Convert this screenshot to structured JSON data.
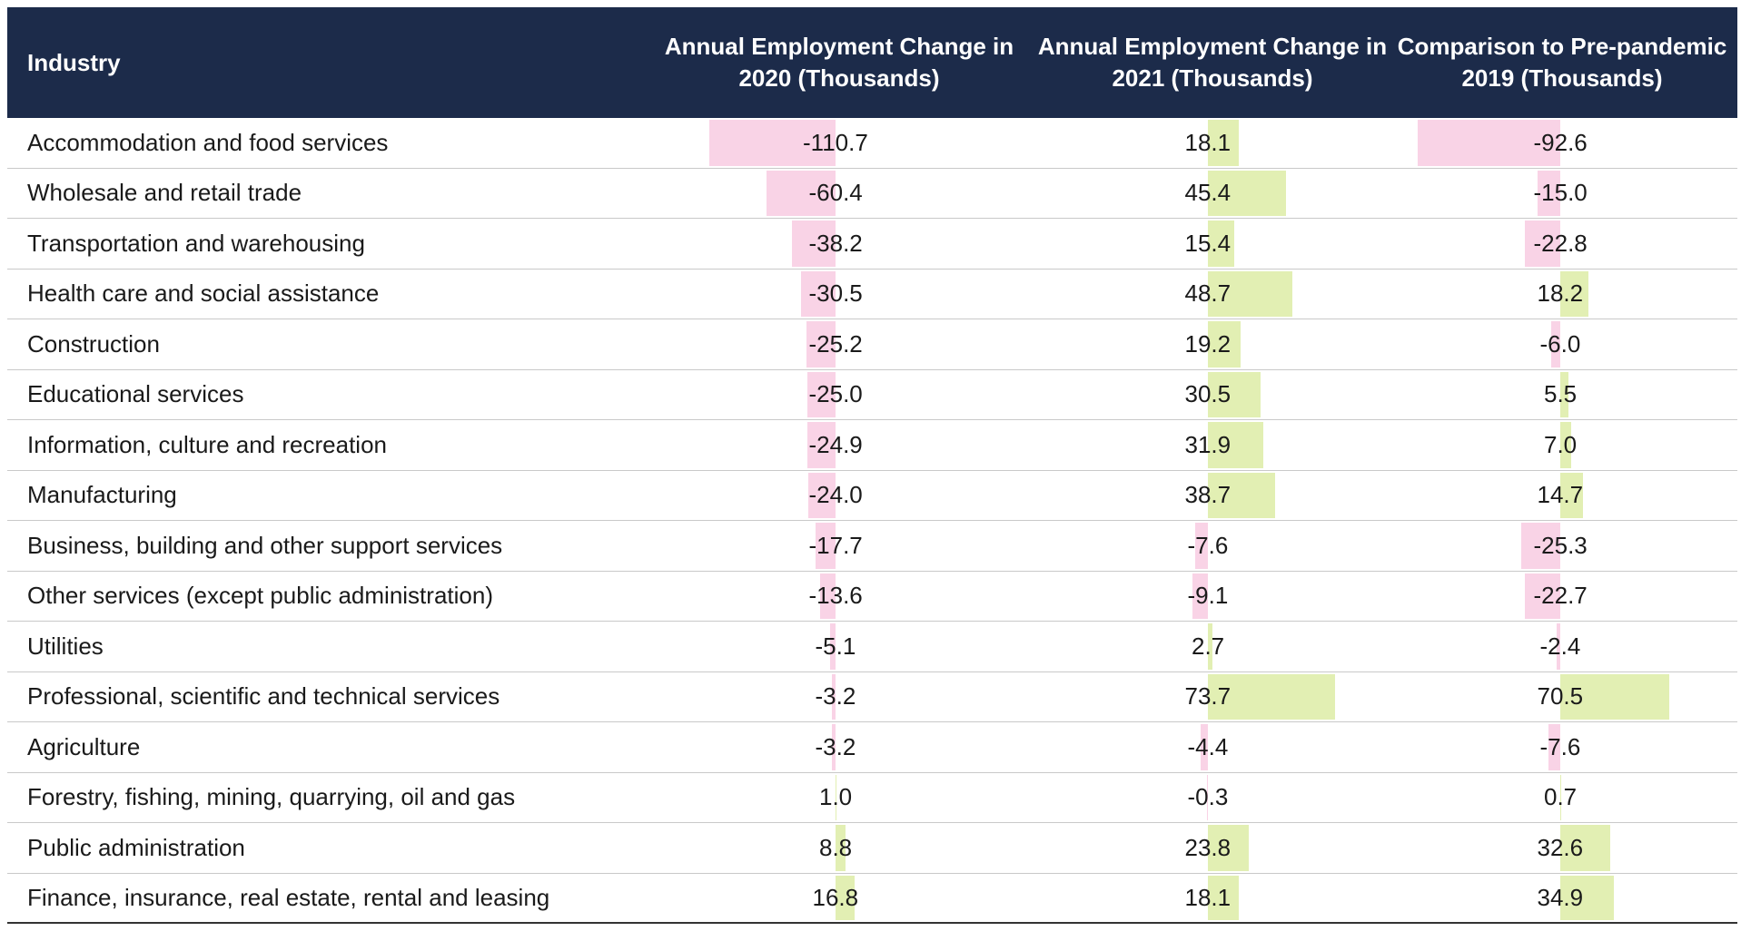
{
  "colors": {
    "header_bg": "#1c2b4a",
    "negative": "#f9d3e6",
    "positive": "#e2efb3"
  },
  "chart_data": {
    "type": "table",
    "columns": [
      "Industry",
      "Annual Employment Change in 2020 (Thousands)",
      "Annual Employment Change in 2021 (Thousands)",
      "Comparison to Pre-pandemic 2019 (Thousands)"
    ],
    "rows": [
      {
        "industry": "Accommodation and food services",
        "v2020": -110.7,
        "v2021": 18.1,
        "vcomp": -92.6
      },
      {
        "industry": "Wholesale and retail trade",
        "v2020": -60.4,
        "v2021": 45.4,
        "vcomp": -15.0
      },
      {
        "industry": "Transportation and warehousing",
        "v2020": -38.2,
        "v2021": 15.4,
        "vcomp": -22.8
      },
      {
        "industry": "Health care and social assistance",
        "v2020": -30.5,
        "v2021": 48.7,
        "vcomp": 18.2
      },
      {
        "industry": "Construction",
        "v2020": -25.2,
        "v2021": 19.2,
        "vcomp": -6.0
      },
      {
        "industry": "Educational services",
        "v2020": -25.0,
        "v2021": 30.5,
        "vcomp": 5.5
      },
      {
        "industry": "Information, culture and recreation",
        "v2020": -24.9,
        "v2021": 31.9,
        "vcomp": 7.0
      },
      {
        "industry": "Manufacturing",
        "v2020": -24.0,
        "v2021": 38.7,
        "vcomp": 14.7
      },
      {
        "industry": "Business, building and other support services",
        "v2020": -17.7,
        "v2021": -7.6,
        "vcomp": -25.3
      },
      {
        "industry": "Other services (except public administration)",
        "v2020": -13.6,
        "v2021": -9.1,
        "vcomp": -22.7
      },
      {
        "industry": "Utilities",
        "v2020": -5.1,
        "v2021": 2.7,
        "vcomp": -2.4
      },
      {
        "industry": "Professional, scientific and technical services",
        "v2020": -3.2,
        "v2021": 73.7,
        "vcomp": 70.5
      },
      {
        "industry": "Agriculture",
        "v2020": -3.2,
        "v2021": -4.4,
        "vcomp": -7.6
      },
      {
        "industry": "Forestry, fishing, mining, quarrying, oil and gas",
        "v2020": 1.0,
        "v2021": -0.3,
        "vcomp": 0.7
      },
      {
        "industry": "Public administration",
        "v2020": 8.8,
        "v2021": 23.8,
        "vcomp": 32.6
      },
      {
        "industry": "Finance, insurance, real estate, rental and leasing",
        "v2020": 16.8,
        "v2021": 18.1,
        "vcomp": 34.9
      }
    ]
  }
}
